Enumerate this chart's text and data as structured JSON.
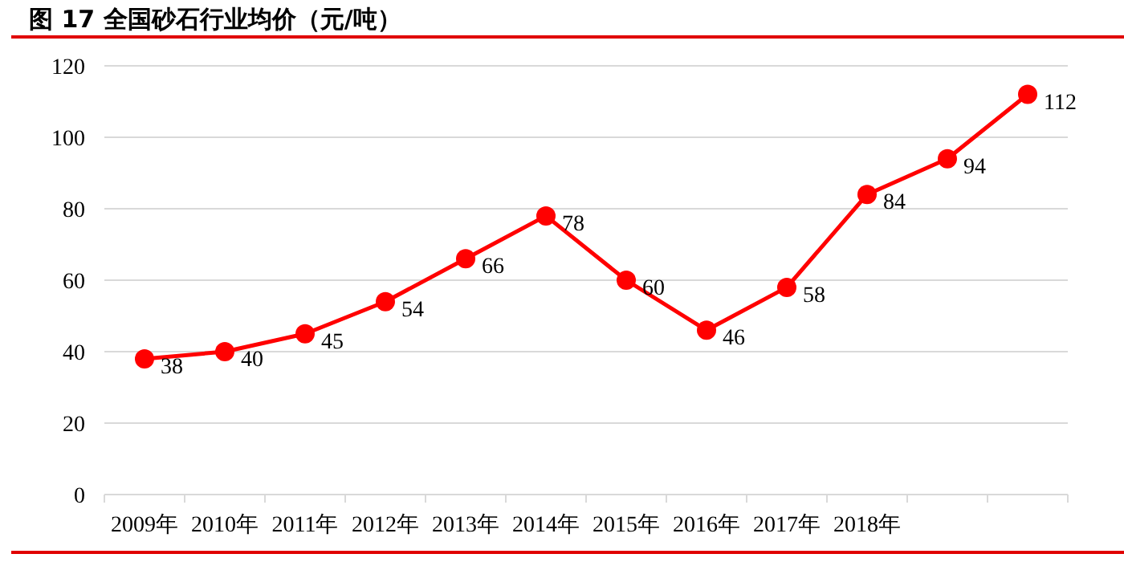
{
  "chart_data": {
    "type": "line",
    "title": "图 17 全国砂石行业均价（元/吨）",
    "categories": [
      "2009年",
      "2010年",
      "2011年",
      "2012年",
      "2013年",
      "2014年",
      "2015年",
      "2016年",
      "2017年",
      "2018年",
      null,
      null
    ],
    "series": [
      {
        "color": "#ff0000",
        "values": [
          38,
          40,
          45,
          54,
          66,
          78,
          60,
          46,
          58,
          84,
          94,
          112
        ]
      }
    ],
    "ylim": [
      0,
      120
    ],
    "yticks": [
      0,
      20,
      40,
      60,
      80,
      100,
      120
    ],
    "grid": "y",
    "marker": "circle",
    "line_style": "solid",
    "data_labels": true
  }
}
